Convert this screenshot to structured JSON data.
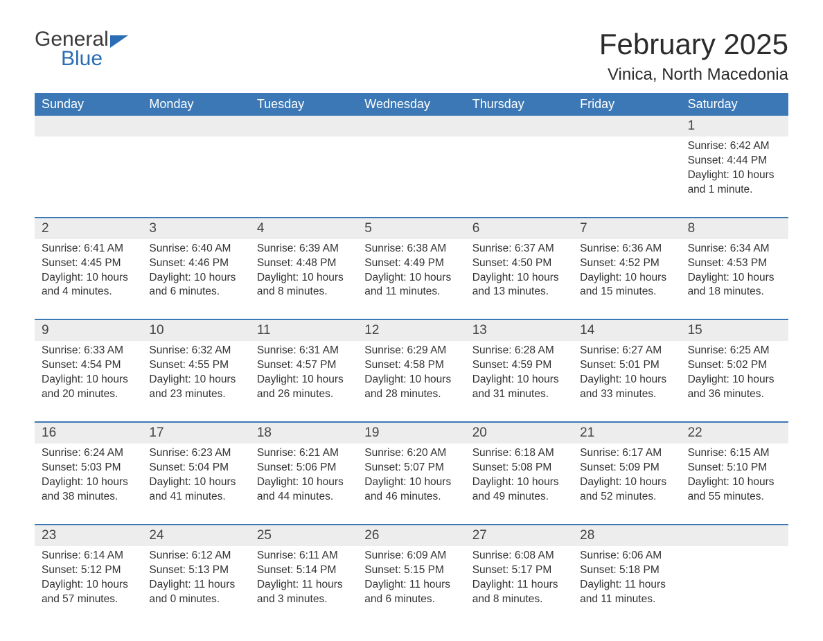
{
  "brand": {
    "part1": "General",
    "part2": "Blue"
  },
  "title": "February 2025",
  "location": "Vinica, North Macedonia",
  "colors": {
    "header_bg": "#3b78b5",
    "header_text": "#ffffff",
    "daynum_bg": "#ededed",
    "week_divider": "#3b78b5",
    "text": "#333333",
    "brand_blue": "#2a6db5"
  },
  "days_of_week": [
    "Sunday",
    "Monday",
    "Tuesday",
    "Wednesday",
    "Thursday",
    "Friday",
    "Saturday"
  ],
  "weeks": [
    [
      null,
      null,
      null,
      null,
      null,
      null,
      {
        "n": "1",
        "sunrise": "Sunrise: 6:42 AM",
        "sunset": "Sunset: 4:44 PM",
        "daylight": "Daylight: 10 hours and 1 minute."
      }
    ],
    [
      {
        "n": "2",
        "sunrise": "Sunrise: 6:41 AM",
        "sunset": "Sunset: 4:45 PM",
        "daylight": "Daylight: 10 hours and 4 minutes."
      },
      {
        "n": "3",
        "sunrise": "Sunrise: 6:40 AM",
        "sunset": "Sunset: 4:46 PM",
        "daylight": "Daylight: 10 hours and 6 minutes."
      },
      {
        "n": "4",
        "sunrise": "Sunrise: 6:39 AM",
        "sunset": "Sunset: 4:48 PM",
        "daylight": "Daylight: 10 hours and 8 minutes."
      },
      {
        "n": "5",
        "sunrise": "Sunrise: 6:38 AM",
        "sunset": "Sunset: 4:49 PM",
        "daylight": "Daylight: 10 hours and 11 minutes."
      },
      {
        "n": "6",
        "sunrise": "Sunrise: 6:37 AM",
        "sunset": "Sunset: 4:50 PM",
        "daylight": "Daylight: 10 hours and 13 minutes."
      },
      {
        "n": "7",
        "sunrise": "Sunrise: 6:36 AM",
        "sunset": "Sunset: 4:52 PM",
        "daylight": "Daylight: 10 hours and 15 minutes."
      },
      {
        "n": "8",
        "sunrise": "Sunrise: 6:34 AM",
        "sunset": "Sunset: 4:53 PM",
        "daylight": "Daylight: 10 hours and 18 minutes."
      }
    ],
    [
      {
        "n": "9",
        "sunrise": "Sunrise: 6:33 AM",
        "sunset": "Sunset: 4:54 PM",
        "daylight": "Daylight: 10 hours and 20 minutes."
      },
      {
        "n": "10",
        "sunrise": "Sunrise: 6:32 AM",
        "sunset": "Sunset: 4:55 PM",
        "daylight": "Daylight: 10 hours and 23 minutes."
      },
      {
        "n": "11",
        "sunrise": "Sunrise: 6:31 AM",
        "sunset": "Sunset: 4:57 PM",
        "daylight": "Daylight: 10 hours and 26 minutes."
      },
      {
        "n": "12",
        "sunrise": "Sunrise: 6:29 AM",
        "sunset": "Sunset: 4:58 PM",
        "daylight": "Daylight: 10 hours and 28 minutes."
      },
      {
        "n": "13",
        "sunrise": "Sunrise: 6:28 AM",
        "sunset": "Sunset: 4:59 PM",
        "daylight": "Daylight: 10 hours and 31 minutes."
      },
      {
        "n": "14",
        "sunrise": "Sunrise: 6:27 AM",
        "sunset": "Sunset: 5:01 PM",
        "daylight": "Daylight: 10 hours and 33 minutes."
      },
      {
        "n": "15",
        "sunrise": "Sunrise: 6:25 AM",
        "sunset": "Sunset: 5:02 PM",
        "daylight": "Daylight: 10 hours and 36 minutes."
      }
    ],
    [
      {
        "n": "16",
        "sunrise": "Sunrise: 6:24 AM",
        "sunset": "Sunset: 5:03 PM",
        "daylight": "Daylight: 10 hours and 38 minutes."
      },
      {
        "n": "17",
        "sunrise": "Sunrise: 6:23 AM",
        "sunset": "Sunset: 5:04 PM",
        "daylight": "Daylight: 10 hours and 41 minutes."
      },
      {
        "n": "18",
        "sunrise": "Sunrise: 6:21 AM",
        "sunset": "Sunset: 5:06 PM",
        "daylight": "Daylight: 10 hours and 44 minutes."
      },
      {
        "n": "19",
        "sunrise": "Sunrise: 6:20 AM",
        "sunset": "Sunset: 5:07 PM",
        "daylight": "Daylight: 10 hours and 46 minutes."
      },
      {
        "n": "20",
        "sunrise": "Sunrise: 6:18 AM",
        "sunset": "Sunset: 5:08 PM",
        "daylight": "Daylight: 10 hours and 49 minutes."
      },
      {
        "n": "21",
        "sunrise": "Sunrise: 6:17 AM",
        "sunset": "Sunset: 5:09 PM",
        "daylight": "Daylight: 10 hours and 52 minutes."
      },
      {
        "n": "22",
        "sunrise": "Sunrise: 6:15 AM",
        "sunset": "Sunset: 5:10 PM",
        "daylight": "Daylight: 10 hours and 55 minutes."
      }
    ],
    [
      {
        "n": "23",
        "sunrise": "Sunrise: 6:14 AM",
        "sunset": "Sunset: 5:12 PM",
        "daylight": "Daylight: 10 hours and 57 minutes."
      },
      {
        "n": "24",
        "sunrise": "Sunrise: 6:12 AM",
        "sunset": "Sunset: 5:13 PM",
        "daylight": "Daylight: 11 hours and 0 minutes."
      },
      {
        "n": "25",
        "sunrise": "Sunrise: 6:11 AM",
        "sunset": "Sunset: 5:14 PM",
        "daylight": "Daylight: 11 hours and 3 minutes."
      },
      {
        "n": "26",
        "sunrise": "Sunrise: 6:09 AM",
        "sunset": "Sunset: 5:15 PM",
        "daylight": "Daylight: 11 hours and 6 minutes."
      },
      {
        "n": "27",
        "sunrise": "Sunrise: 6:08 AM",
        "sunset": "Sunset: 5:17 PM",
        "daylight": "Daylight: 11 hours and 8 minutes."
      },
      {
        "n": "28",
        "sunrise": "Sunrise: 6:06 AM",
        "sunset": "Sunset: 5:18 PM",
        "daylight": "Daylight: 11 hours and 11 minutes."
      },
      null
    ]
  ]
}
